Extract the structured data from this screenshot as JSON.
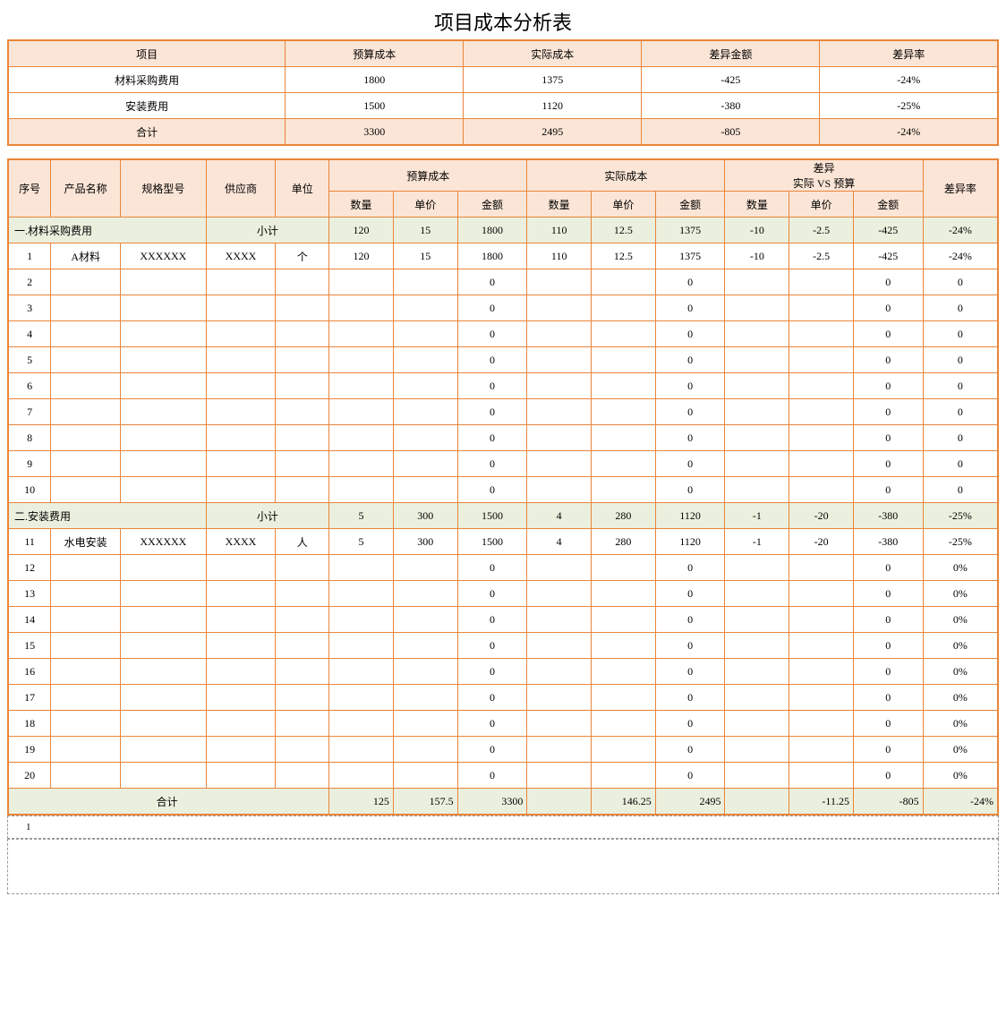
{
  "title": "项目成本分析表",
  "summary": {
    "headers": [
      "项目",
      "预算成本",
      "实际成本",
      "差异金额",
      "差异率"
    ],
    "rows": [
      [
        "材料采购费用",
        "1800",
        "1375",
        "-425",
        "-24%"
      ],
      [
        "安装费用",
        "1500",
        "1120",
        "-380",
        "-25%"
      ]
    ],
    "total": [
      "合计",
      "3300",
      "2495",
      "-805",
      "-24%"
    ]
  },
  "detail": {
    "headers": {
      "seq": "序号",
      "product": "产品名称",
      "spec": "规格型号",
      "supplier": "供应商",
      "unit": "单位",
      "budget": "预算成本",
      "actual": "实际成本",
      "variance": "差异",
      "variance_sub": "实际 VS 预算",
      "rate": "差异率",
      "qty": "数量",
      "price": "单价",
      "amount": "金额"
    },
    "section1": {
      "label": "一.材料采购费用",
      "subtotal_label": "小计",
      "subtotal": [
        "120",
        "15",
        "1800",
        "110",
        "12.5",
        "1375",
        "-10",
        "-2.5",
        "-425",
        "-24%"
      ],
      "rows": [
        [
          "1",
          "A材料",
          "XXXXXX",
          "XXXX",
          "个",
          "120",
          "15",
          "1800",
          "110",
          "12.5",
          "1375",
          "-10",
          "-2.5",
          "-425",
          "-24%"
        ],
        [
          "2",
          "",
          "",
          "",
          "",
          "",
          "",
          "0",
          "",
          "",
          "0",
          "",
          "",
          "0",
          "0"
        ],
        [
          "3",
          "",
          "",
          "",
          "",
          "",
          "",
          "0",
          "",
          "",
          "0",
          "",
          "",
          "0",
          "0"
        ],
        [
          "4",
          "",
          "",
          "",
          "",
          "",
          "",
          "0",
          "",
          "",
          "0",
          "",
          "",
          "0",
          "0"
        ],
        [
          "5",
          "",
          "",
          "",
          "",
          "",
          "",
          "0",
          "",
          "",
          "0",
          "",
          "",
          "0",
          "0"
        ],
        [
          "6",
          "",
          "",
          "",
          "",
          "",
          "",
          "0",
          "",
          "",
          "0",
          "",
          "",
          "0",
          "0"
        ],
        [
          "7",
          "",
          "",
          "",
          "",
          "",
          "",
          "0",
          "",
          "",
          "0",
          "",
          "",
          "0",
          "0"
        ],
        [
          "8",
          "",
          "",
          "",
          "",
          "",
          "",
          "0",
          "",
          "",
          "0",
          "",
          "",
          "0",
          "0"
        ],
        [
          "9",
          "",
          "",
          "",
          "",
          "",
          "",
          "0",
          "",
          "",
          "0",
          "",
          "",
          "0",
          "0"
        ],
        [
          "10",
          "",
          "",
          "",
          "",
          "",
          "",
          "0",
          "",
          "",
          "0",
          "",
          "",
          "0",
          "0"
        ]
      ]
    },
    "section2": {
      "label": "二.安装费用",
      "subtotal_label": "小计",
      "subtotal": [
        "5",
        "300",
        "1500",
        "4",
        "280",
        "1120",
        "-1",
        "-20",
        "-380",
        "-25%"
      ],
      "rows": [
        [
          "11",
          "水电安装",
          "XXXXXX",
          "XXXX",
          "人",
          "5",
          "300",
          "1500",
          "4",
          "280",
          "1120",
          "-1",
          "-20",
          "-380",
          "-25%"
        ],
        [
          "12",
          "",
          "",
          "",
          "",
          "",
          "",
          "0",
          "",
          "",
          "0",
          "",
          "",
          "0",
          "0%"
        ],
        [
          "13",
          "",
          "",
          "",
          "",
          "",
          "",
          "0",
          "",
          "",
          "0",
          "",
          "",
          "0",
          "0%"
        ],
        [
          "14",
          "",
          "",
          "",
          "",
          "",
          "",
          "0",
          "",
          "",
          "0",
          "",
          "",
          "0",
          "0%"
        ],
        [
          "15",
          "",
          "",
          "",
          "",
          "",
          "",
          "0",
          "",
          "",
          "0",
          "",
          "",
          "0",
          "0%"
        ],
        [
          "16",
          "",
          "",
          "",
          "",
          "",
          "",
          "0",
          "",
          "",
          "0",
          "",
          "",
          "0",
          "0%"
        ],
        [
          "17",
          "",
          "",
          "",
          "",
          "",
          "",
          "0",
          "",
          "",
          "0",
          "",
          "",
          "0",
          "0%"
        ],
        [
          "18",
          "",
          "",
          "",
          "",
          "",
          "",
          "0",
          "",
          "",
          "0",
          "",
          "",
          "0",
          "0%"
        ],
        [
          "19",
          "",
          "",
          "",
          "",
          "",
          "",
          "0",
          "",
          "",
          "0",
          "",
          "",
          "0",
          "0%"
        ],
        [
          "20",
          "",
          "",
          "",
          "",
          "",
          "",
          "0",
          "",
          "",
          "0",
          "",
          "",
          "0",
          "0%"
        ]
      ]
    },
    "total": {
      "label": "合计",
      "values": [
        "125",
        "157.5",
        "3300",
        "",
        "146.25",
        "2495",
        "",
        "-11.25",
        "-805",
        "-24%"
      ]
    }
  },
  "footer": "1",
  "colors": {
    "border": "#e8853a",
    "header_bg": "#fbe5d6",
    "subtotal_bg": "#ebf0de"
  },
  "col_widths_pct": [
    4,
    6.5,
    8,
    6.5,
    5,
    6,
    6,
    6.5,
    6,
    6,
    6.5,
    6,
    6,
    6.5,
    7
  ]
}
